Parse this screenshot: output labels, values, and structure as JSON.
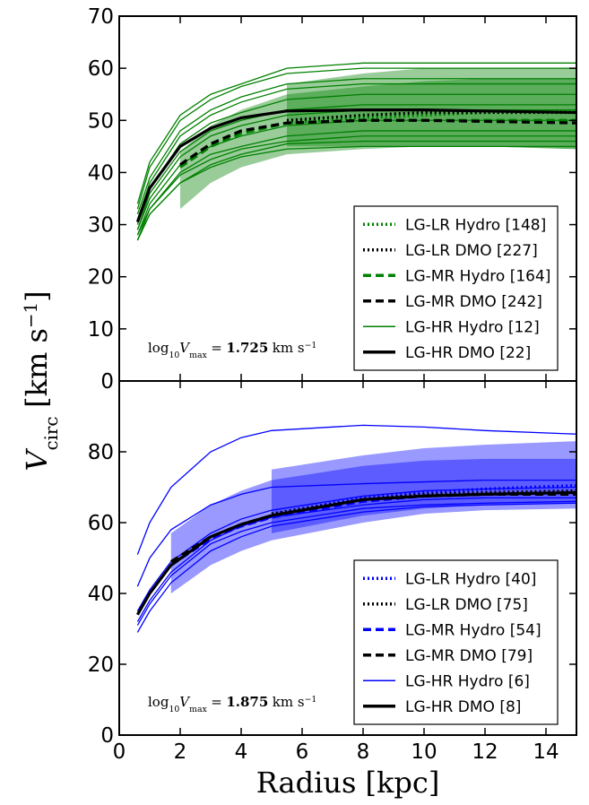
{
  "chart_data": [
    {
      "type": "line",
      "xlim": [
        0,
        15
      ],
      "xticks": [
        0,
        2,
        4,
        6,
        8,
        10,
        12,
        14
      ],
      "xtick_labels": false,
      "ylim": [
        0,
        70
      ],
      "yticks": [
        0,
        10,
        20,
        30,
        40,
        50,
        60,
        70
      ],
      "x": [
        0.6,
        1,
        2,
        3,
        4,
        5.5,
        8,
        10,
        12,
        15
      ],
      "bands": [
        {
          "color": "#008000",
          "lower": [
            null,
            null,
            33,
            38,
            41,
            43.5,
            44.5,
            45,
            45,
            44.5
          ],
          "upper": [
            null,
            null,
            44,
            49,
            52,
            55,
            56.5,
            57.5,
            58,
            58
          ]
        },
        {
          "color": "#008000",
          "lower": [
            null,
            null,
            null,
            null,
            null,
            45,
            45,
            45,
            45,
            44.5
          ],
          "upper": [
            null,
            null,
            null,
            null,
            null,
            57,
            59,
            60,
            60,
            60
          ]
        }
      ],
      "series": [
        {
          "name": "LG-LR Hydro [148]",
          "color": "#008000",
          "style": "dotted",
          "values": [
            null,
            null,
            null,
            null,
            null,
            49.5,
            50.5,
            51,
            51.5,
            51.8
          ]
        },
        {
          "name": "LG-LR DMO [227]",
          "color": "#000000",
          "style": "dotted",
          "values": [
            null,
            null,
            null,
            null,
            null,
            50,
            51,
            51.5,
            51.5,
            51.5
          ]
        },
        {
          "name": "LG-MR Hydro [164]",
          "color": "#008000",
          "style": "dashed",
          "values": [
            null,
            null,
            41,
            45,
            47.5,
            49.5,
            50,
            50,
            50,
            50
          ]
        },
        {
          "name": "LG-MR DMO [242]",
          "color": "#000000",
          "style": "dashed",
          "values": [
            null,
            null,
            41.5,
            45.5,
            48,
            49.5,
            50,
            50,
            49.8,
            49.5
          ]
        },
        {
          "name": "LG-HR Hydro [12]",
          "color": "#008000",
          "style": "solid",
          "curves": [
            [
              34,
              42,
              51,
              55,
              57,
              60,
              61,
              61,
              61,
              61
            ],
            [
              33,
              41,
              50,
              54,
              56.5,
              59,
              60,
              60,
              60,
              60
            ],
            [
              32,
              39,
              48,
              52,
              54.5,
              57,
              58,
              58,
              58,
              58
            ],
            [
              31,
              38,
              47,
              51,
              53.5,
              56,
              57,
              57,
              57,
              57
            ],
            [
              30,
              37,
              45.5,
              49.5,
              51.5,
              54,
              55,
              55,
              55,
              55
            ],
            [
              29,
              36,
              44,
              48,
              50,
              52,
              53,
              53,
              53,
              53
            ],
            [
              29,
              35,
              43,
              47,
              49,
              51,
              52,
              52,
              52,
              52
            ],
            [
              28,
              34,
              41.5,
              45,
              47,
              49,
              50,
              50,
              50,
              50
            ],
            [
              27,
              33,
              40,
              43.5,
              45,
              47,
              48,
              48,
              48,
              48
            ],
            [
              28,
              33,
              39.5,
              42.5,
              44.5,
              46,
              47,
              47,
              47,
              47
            ],
            [
              27,
              32,
              38,
              41.5,
              43.5,
              45.5,
              46,
              46,
              46,
              46
            ],
            [
              27,
              32,
              38,
              41,
              43,
              44.5,
              45,
              45,
              45,
              45
            ]
          ]
        },
        {
          "name": "LG-HR DMO [22]",
          "color": "#000000",
          "style": "solid",
          "values": [
            30.5,
            37,
            45,
            48.5,
            50.5,
            51.8,
            52,
            52,
            51.8,
            51.5
          ]
        }
      ],
      "annotation": {
        "func": "log",
        "base": "10",
        "symbol": "V",
        "sub": "max",
        "eq": "=",
        "value": "1.725",
        "unit": "km s",
        "exp": "−1"
      },
      "ylabel": {
        "symbol": "V",
        "sub": "circ",
        "unit": "[km s",
        "exp": "−1",
        "close": "]"
      }
    },
    {
      "type": "line",
      "xlim": [
        0,
        15
      ],
      "xticks": [
        0,
        2,
        4,
        6,
        8,
        10,
        12,
        14
      ],
      "xtick_labels": true,
      "ylim": [
        0,
        100
      ],
      "yticks": [
        0,
        20,
        40,
        60,
        80
      ],
      "x": [
        0.6,
        1,
        1.7,
        3,
        4,
        5,
        8,
        10,
        12,
        15
      ],
      "bands": [
        {
          "color": "#0000ff",
          "lower": [
            null,
            null,
            40,
            48,
            52,
            55,
            60,
            62.5,
            63.5,
            64
          ],
          "upper": [
            null,
            null,
            57,
            65,
            69,
            72,
            76,
            77.5,
            78,
            78
          ]
        },
        {
          "color": "#0000ff",
          "lower": [
            null,
            null,
            null,
            null,
            null,
            57,
            62,
            64,
            65,
            65.5
          ],
          "upper": [
            null,
            null,
            null,
            null,
            null,
            75,
            79,
            81,
            82,
            83
          ]
        }
      ],
      "series": [
        {
          "name": "LG-LR Hydro [40]",
          "color": "#0000ff",
          "style": "dotted",
          "values": [
            null,
            null,
            null,
            null,
            null,
            62.5,
            67,
            68.5,
            69.5,
            70.5
          ]
        },
        {
          "name": "LG-LR DMO [75]",
          "color": "#000000",
          "style": "dotted",
          "values": [
            null,
            null,
            null,
            null,
            null,
            62.5,
            66.5,
            68,
            68.5,
            69
          ]
        },
        {
          "name": "LG-MR Hydro [54]",
          "color": "#0000ff",
          "style": "dashed",
          "values": [
            null,
            null,
            48,
            55.5,
            59,
            61.5,
            66,
            67.5,
            68,
            68.5
          ]
        },
        {
          "name": "LG-MR DMO [79]",
          "color": "#000000",
          "style": "dashed",
          "values": [
            null,
            null,
            49,
            56,
            59.5,
            62,
            66.5,
            67.5,
            68,
            68
          ]
        },
        {
          "name": "LG-HR Hydro [6]",
          "color": "#0000ff",
          "style": "solid",
          "curves": [
            [
              51,
              60,
              70,
              80,
              84,
              86,
              87.5,
              87,
              86,
              85
            ],
            [
              42,
              50,
              58,
              65,
              68,
              70,
              71,
              71.5,
              72,
              72
            ],
            [
              35,
              41,
              49,
              57,
              61,
              63.5,
              67.5,
              69,
              69.5,
              70
            ],
            [
              32,
              38,
              46,
              55,
              59,
              61.5,
              65,
              66.5,
              67,
              67
            ],
            [
              31,
              37,
              45,
              54,
              57.5,
              60,
              64,
              65,
              65.5,
              66
            ],
            [
              29,
              35,
              43,
              52,
              56,
              59,
              63,
              64.5,
              65,
              65.5
            ]
          ]
        },
        {
          "name": "LG-HR DMO [8]",
          "color": "#000000",
          "style": "solid",
          "values": [
            34,
            40,
            48,
            56,
            59.5,
            62,
            66.5,
            67.5,
            68,
            68.5
          ]
        }
      ],
      "annotation": {
        "func": "log",
        "base": "10",
        "symbol": "V",
        "sub": "max",
        "eq": "=",
        "value": "1.875",
        "unit": "km s",
        "exp": "−1"
      },
      "xlabel": "Radius [kpc]"
    }
  ]
}
